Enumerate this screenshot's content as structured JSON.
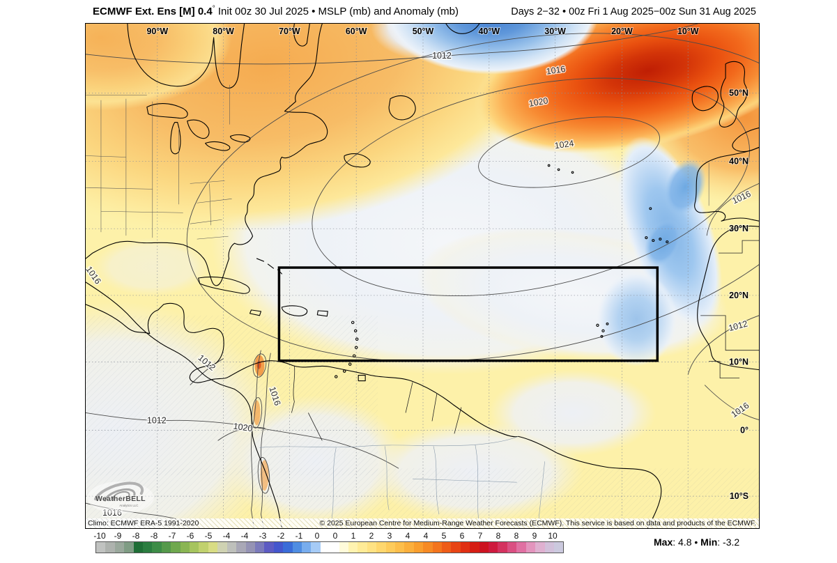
{
  "header": {
    "title_bold": "ECMWF Ext. Ens [M] 0.4",
    "title_degree": "°",
    "title_rest": " Init 00z 30 Jul 2025 • MSLP (mb) and Anomaly (mb)",
    "title_right": "Days 2−32 • 00z Fri 1 Aug 2025−00z Sun 31 Aug 2025"
  },
  "map": {
    "lon_labels": [
      "90°W",
      "80°W",
      "70°W",
      "60°W",
      "50°W",
      "40°W",
      "30°W",
      "20°W",
      "10°W"
    ],
    "lat_labels": [
      "50°N",
      "40°N",
      "30°N",
      "20°N",
      "10°N",
      "0°",
      "10°S"
    ],
    "contour_labels": [
      {
        "text": "1012"
      },
      {
        "text": "1016"
      },
      {
        "text": "1020"
      },
      {
        "text": "1024"
      },
      {
        "text": "1016"
      },
      {
        "text": "1012"
      },
      {
        "text": "1016"
      },
      {
        "text": "1016"
      },
      {
        "text": "1012"
      },
      {
        "text": "1012"
      },
      {
        "text": "1020"
      },
      {
        "text": "1016"
      },
      {
        "text": "1016"
      }
    ],
    "logo": {
      "line1": "WeatherBELL",
      "line2": "Analytics LLC"
    }
  },
  "footer": {
    "climo": "Climo: ECMWF ERA-5 1991-2020",
    "copyright": "© 2025 European Centre for Medium-Range Weather Forecasts (ECMWF). This service is based on data and products of the ECMWF."
  },
  "colorbar": {
    "labels": [
      "-10",
      "-9",
      "-8",
      "-8",
      "-7",
      "-6",
      "-5",
      "-4",
      "-4",
      "-3",
      "-2",
      "-1",
      "0",
      "0",
      "1",
      "2",
      "3",
      "4",
      "4",
      "5",
      "6",
      "7",
      "8",
      "8",
      "9",
      "10"
    ],
    "colors": [
      "#c0c2c0",
      "#aeb2ae",
      "#9aa89c",
      "#7f9c84",
      "#1f6e36",
      "#2b7d40",
      "#3d8c47",
      "#55994b",
      "#6fa84e",
      "#8ab553",
      "#a6c45e",
      "#c1d16e",
      "#d8dc84",
      "#cfd2b2",
      "#bec0bb",
      "#a9a8b6",
      "#9593b4",
      "#7b7abb",
      "#5d5bc3",
      "#4456cd",
      "#3a6cd8",
      "#4f8de2",
      "#78adee",
      "#a6cbf6",
      "#ffffff",
      "#ffffff",
      "#fffbda",
      "#fff3b0",
      "#ffeb97",
      "#ffe283",
      "#ffd76e",
      "#fecb5b",
      "#fdbe4b",
      "#fbaf3c",
      "#f99e2e",
      "#f68a24",
      "#f3741d",
      "#ee5c18",
      "#e84414",
      "#e02f12",
      "#d61d13",
      "#cc1220",
      "#ce1a3e",
      "#d4325f",
      "#da4f82",
      "#e070a2",
      "#e394bd",
      "#dfb0d0",
      "#d2c0da",
      "#cbc9de"
    ],
    "max_label": "Max",
    "max_value": ": 4.8 ",
    "separator": "• ",
    "min_label": "Min",
    "min_value": ": -3.2"
  }
}
